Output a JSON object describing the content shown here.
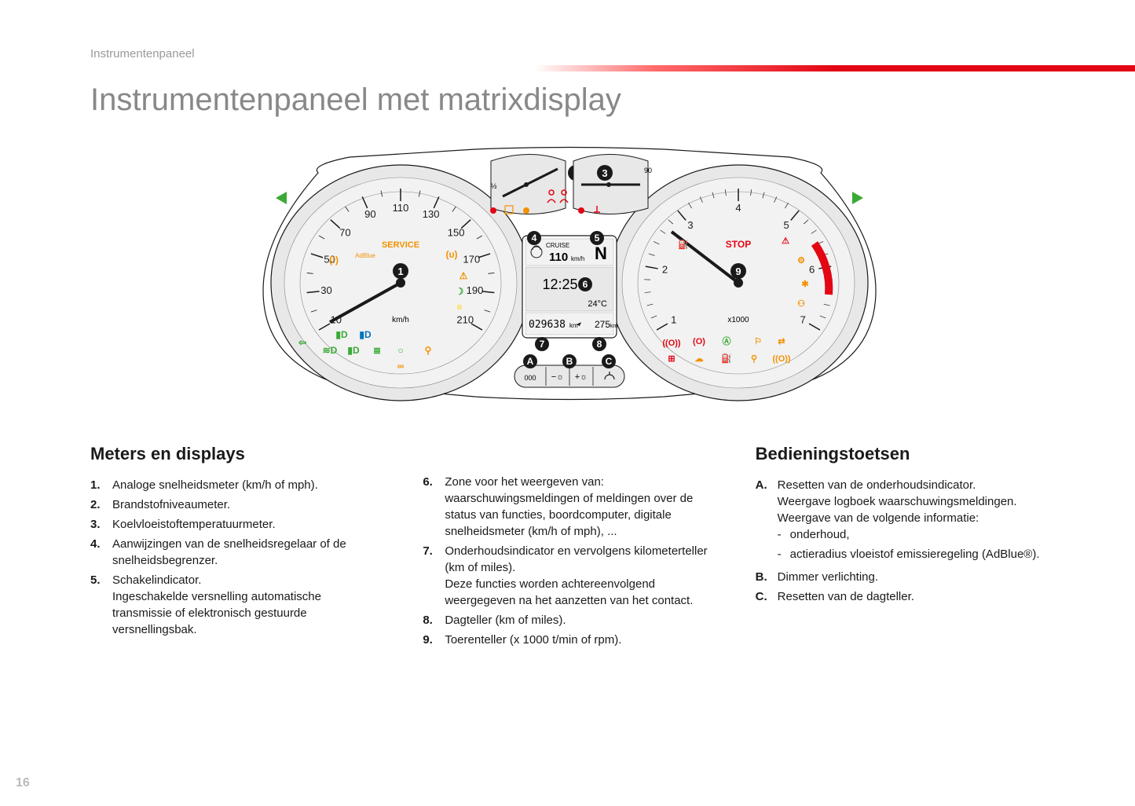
{
  "section_label": "Instrumentenpaneel",
  "title": "Instrumentenpaneel met matrixdisplay",
  "page_number": "16",
  "meters_heading": "Meters en displays",
  "controls_heading": "Bedieningstoetsen",
  "meters_list_a": [
    {
      "n": "1.",
      "t": "Analoge snelheidsmeter (km/h of mph)."
    },
    {
      "n": "2.",
      "t": "Brandstofniveaumeter."
    },
    {
      "n": "3.",
      "t": "Koelvloeistoftemperatuurmeter."
    },
    {
      "n": "4.",
      "t": "Aanwijzingen van de snelheidsregelaar of de snelheidsbegrenzer."
    },
    {
      "n": "5.",
      "t": "Schakelindicator.\nIngeschakelde versnelling automatische transmissie of elektronisch gestuurde versnellingsbak."
    }
  ],
  "meters_list_b": [
    {
      "n": "6.",
      "t": "Zone voor het weergeven van: waarschuwingsmeldingen of meldingen over de status van functies, boordcomputer, digitale snelheidsmeter (km/h of mph), ..."
    },
    {
      "n": "7.",
      "t": "Onderhoudsindicator en vervolgens kilometerteller (km of miles).\nDeze functies worden achtereenvolgend weergegeven na het aanzetten van het contact."
    },
    {
      "n": "8.",
      "t": "Dagteller (km of miles)."
    },
    {
      "n": "9.",
      "t": "Toerenteller (x 1000 t/min of rpm)."
    }
  ],
  "controls_list": [
    {
      "n": "A.",
      "t": "Resetten van de onderhoudsindicator.\nWeergave logboek waarschuwingsmeldingen.\nWeergave van de volgende informatie:",
      "sub": [
        "onderhoud,",
        "actieradius vloeistof emissieregeling (AdBlue®)."
      ]
    },
    {
      "n": "B.",
      "t": "Dimmer verlichting."
    },
    {
      "n": "C.",
      "t": "Resetten van de dagteller."
    }
  ],
  "diagram": {
    "cluster_bg": "#ffffff",
    "dial_bg": "#e8e8e8",
    "outline": "#1a1a1a",
    "gauge_face": "#f2f2f2",
    "speedo_ticks": [
      "10",
      "30",
      "50",
      "70",
      "90",
      "110",
      "130",
      "150",
      "170",
      "190",
      "210"
    ],
    "tacho_ticks": [
      "1",
      "2",
      "3",
      "4",
      "5",
      "6",
      "7"
    ],
    "speedo_unit": "km/h",
    "tacho_unit": "x1000",
    "cruise_label": "CRUISE",
    "cruise_value": "110",
    "cruise_unit": "km/h",
    "gear": "N",
    "clock": "12:25",
    "temp_disp": "24°C",
    "odo": "029638",
    "odo_unit": "km",
    "trip": "275",
    "trip_unit": "km",
    "service_label": "SERVICE",
    "stop_label": "STOP",
    "adblue_label": "AdBlue",
    "callouts": [
      "1",
      "2",
      "3",
      "4",
      "5",
      "6",
      "7",
      "8",
      "9"
    ],
    "button_callouts": [
      "A",
      "B",
      "C"
    ],
    "buttons_000": "000",
    "warn_colors": {
      "red": "#e30613",
      "orange": "#f39200",
      "green": "#3aaa35",
      "blue": "#0072bc",
      "yellow": "#ffd400"
    }
  }
}
